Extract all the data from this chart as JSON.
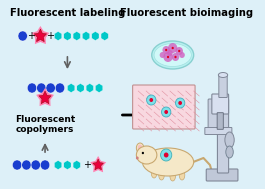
{
  "bg_color": "#ddf0f8",
  "title_left": "Fluorescent labeling",
  "title_right": "Fluorescent bioimaging",
  "title_fontsize": 7.2,
  "title_bold": true,
  "blue_dot_color": "#1a3ecf",
  "cyan_dot_color": "#00c8c8",
  "star_color": "#e8003c",
  "star_glow": "#ff80b0",
  "arrow_color": "#606060",
  "text_label": "Fluorescent\ncopolymers",
  "text_fontsize": 6.5
}
